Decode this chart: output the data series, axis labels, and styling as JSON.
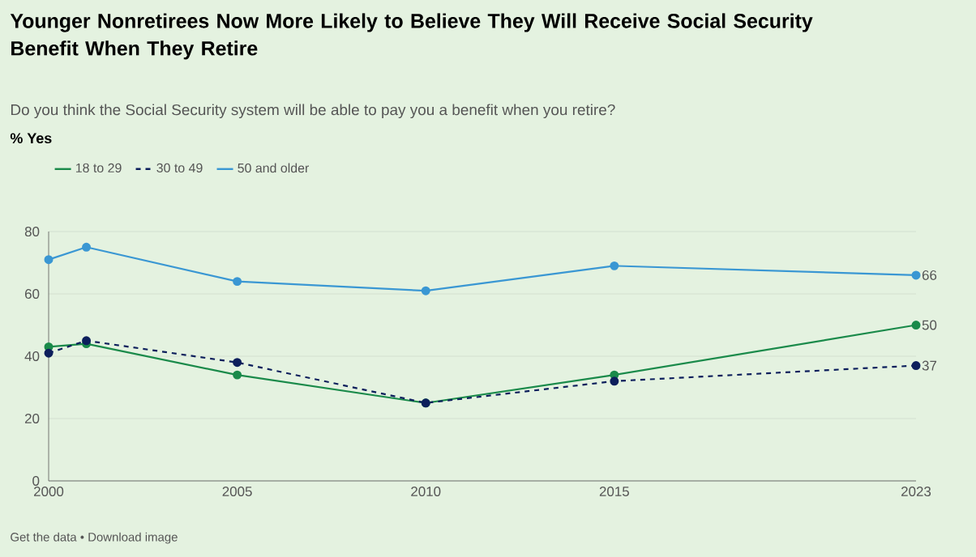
{
  "chart_data": {
    "type": "line",
    "title": "Younger Nonretirees Now More Likely to Believe They Will Receive Social Security Benefit When They Retire",
    "subtitle": "Do you think the Social Security system will be able to pay you a benefit when you retire?",
    "x": [
      2000,
      2001,
      2005,
      2010,
      2015,
      2023
    ],
    "series": [
      {
        "name": "18 to 29",
        "color": "#1a8a4a",
        "values": [
          43,
          44,
          34,
          25,
          34,
          50
        ],
        "value_labels": [
          null,
          null,
          null,
          null,
          null,
          "50"
        ]
      },
      {
        "name": "30 to 49",
        "color": "#0d1f5c",
        "line_style": "dashed",
        "values": [
          41,
          45,
          38,
          25,
          32,
          37
        ],
        "value_labels": [
          null,
          null,
          null,
          null,
          null,
          "37"
        ]
      },
      {
        "name": "50 and older",
        "color": "#3a97d3",
        "values": [
          71,
          75,
          64,
          61,
          69,
          66
        ],
        "value_labels": [
          null,
          null,
          null,
          null,
          null,
          "66"
        ]
      }
    ],
    "xlim": [
      2000,
      2023
    ],
    "xticks": [
      2000,
      2005,
      2010,
      2015,
      2023
    ],
    "ylim": [
      0,
      80
    ],
    "yticks": [
      0,
      20,
      40,
      60,
      80
    ],
    "grid": "y",
    "legend": "top left",
    "marker": "circle",
    "line_style": "solid",
    "annotations": [
      "% Yes",
      "Get the data • Download image"
    ]
  }
}
